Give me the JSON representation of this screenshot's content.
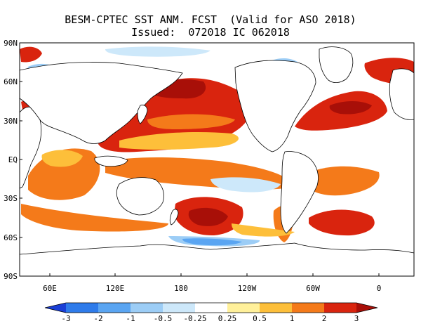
{
  "title_line1": "BESM-CPTEC SST ANM. FCST  (Valid for ASO 2018)",
  "title_line2": "Issued:  072018 IC 062018",
  "lat_labels": [
    "90N",
    "60N",
    "30N",
    "EQ",
    "30S",
    "60S",
    "90S"
  ],
  "lon_labels": [
    "60E",
    "120E",
    "180",
    "120W",
    "60W",
    "0"
  ],
  "colorbar": {
    "ticks": [
      "-3",
      "-2",
      "-1",
      "-0.5",
      "-0.25",
      "0.25",
      "0.5",
      "1",
      "2",
      "3"
    ],
    "colors": [
      "#1a3fd6",
      "#2e7bea",
      "#5aa5f2",
      "#9ccdf6",
      "#cde8fa",
      "#ffffff",
      "#fff09a",
      "#fdbf3a",
      "#f47a1a",
      "#d9240e",
      "#a80f08"
    ]
  },
  "colors": {
    "land": "#ffffff",
    "coast": "#000000",
    "ocean_neutral": "#ffffff"
  }
}
